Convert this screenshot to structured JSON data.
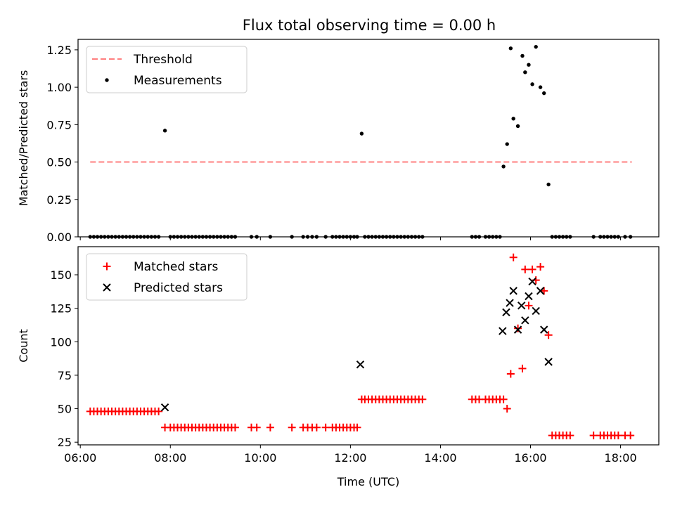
{
  "chart_data": [
    {
      "type": "scatter",
      "title": "Flux total observing time = 0.00 h",
      "xlabel": "",
      "ylabel": "Matched/Predicted stars",
      "xlim": [
        5.95,
        18.85
      ],
      "ylim": [
        0,
        1.32
      ],
      "yticks": [
        0.0,
        0.25,
        0.5,
        0.75,
        1.0,
        1.25
      ],
      "yticklabels": [
        "0.00",
        "0.25",
        "0.50",
        "0.75",
        "1.00",
        "1.25"
      ],
      "xticks": [
        6,
        8,
        10,
        12,
        14,
        16,
        18
      ],
      "xticklabels_visible": false,
      "legend_position": "upper-left",
      "threshold": {
        "name": "Threshold",
        "value": 0.5,
        "x_range": [
          6.22,
          18.25
        ],
        "color": "#ff7f7f"
      },
      "series": [
        {
          "name": "Measurements",
          "marker": "dot",
          "color": "#000000",
          "x": [
            6.22,
            6.3,
            6.38,
            6.46,
            6.54,
            6.62,
            6.7,
            6.78,
            6.86,
            6.94,
            7.02,
            7.1,
            7.18,
            7.26,
            7.34,
            7.42,
            7.5,
            7.58,
            7.66,
            7.74,
            7.88,
            8.0,
            8.08,
            8.16,
            8.24,
            8.32,
            8.4,
            8.48,
            8.56,
            8.64,
            8.72,
            8.8,
            8.88,
            8.96,
            9.04,
            9.12,
            9.2,
            9.28,
            9.36,
            9.44,
            9.8,
            9.92,
            10.22,
            10.7,
            10.95,
            11.05,
            11.15,
            11.25,
            11.45,
            11.6,
            11.68,
            11.76,
            11.84,
            11.92,
            12.0,
            12.08,
            12.15,
            12.25,
            12.32,
            12.4,
            12.48,
            12.56,
            12.64,
            12.72,
            12.8,
            12.88,
            12.96,
            13.04,
            13.12,
            13.2,
            13.28,
            13.36,
            13.44,
            13.52,
            13.6,
            14.7,
            14.78,
            14.86,
            15.0,
            15.08,
            15.16,
            15.24,
            15.32,
            15.4,
            15.48,
            15.56,
            15.62,
            15.72,
            15.82,
            15.88,
            15.96,
            16.04,
            16.12,
            16.22,
            16.3,
            16.4,
            16.48,
            16.56,
            16.64,
            16.72,
            16.8,
            16.88,
            17.4,
            17.55,
            17.63,
            17.71,
            17.79,
            17.87,
            17.95,
            18.1,
            18.22
          ],
          "y": [
            0,
            0,
            0,
            0,
            0,
            0,
            0,
            0,
            0,
            0,
            0,
            0,
            0,
            0,
            0,
            0,
            0,
            0,
            0,
            0,
            0.71,
            0,
            0,
            0,
            0,
            0,
            0,
            0,
            0,
            0,
            0,
            0,
            0,
            0,
            0,
            0,
            0,
            0,
            0,
            0,
            0,
            0,
            0,
            0,
            0,
            0,
            0,
            0,
            0,
            0,
            0,
            0,
            0,
            0,
            0,
            0,
            0,
            0.69,
            0,
            0,
            0,
            0,
            0,
            0,
            0,
            0,
            0,
            0,
            0,
            0,
            0,
            0,
            0,
            0,
            0,
            0,
            0,
            0,
            0,
            0,
            0,
            0,
            0,
            0.47,
            0.62,
            1.26,
            0.79,
            0.74,
            1.21,
            1.1,
            1.15,
            1.02,
            1.27,
            1.0,
            0.96,
            0.35,
            0,
            0,
            0,
            0,
            0,
            0,
            0,
            0,
            0,
            0,
            0,
            0,
            0,
            0,
            0
          ]
        }
      ]
    },
    {
      "type": "scatter",
      "title": "",
      "xlabel": "Time (UTC)",
      "ylabel": "Count",
      "xlim": [
        5.95,
        18.85
      ],
      "ylim": [
        23,
        171
      ],
      "yticks": [
        25,
        50,
        75,
        100,
        125,
        150
      ],
      "yticklabels": [
        "25",
        "50",
        "75",
        "100",
        "125",
        "150"
      ],
      "xticks": [
        6,
        8,
        10,
        12,
        14,
        16,
        18
      ],
      "xticklabels": [
        "06:00",
        "08:00",
        "10:00",
        "12:00",
        "14:00",
        "16:00",
        "18:00"
      ],
      "legend_position": "upper-left",
      "series": [
        {
          "name": "Matched stars",
          "marker": "plus",
          "color": "#ff0000",
          "x": [
            6.22,
            6.3,
            6.38,
            6.46,
            6.54,
            6.62,
            6.7,
            6.78,
            6.86,
            6.94,
            7.02,
            7.1,
            7.18,
            7.26,
            7.34,
            7.42,
            7.5,
            7.58,
            7.66,
            7.74,
            7.88,
            8.0,
            8.08,
            8.16,
            8.24,
            8.32,
            8.4,
            8.48,
            8.56,
            8.64,
            8.72,
            8.8,
            8.88,
            8.96,
            9.04,
            9.12,
            9.2,
            9.28,
            9.36,
            9.44,
            9.8,
            9.92,
            10.22,
            10.7,
            10.95,
            11.05,
            11.15,
            11.25,
            11.45,
            11.6,
            11.68,
            11.76,
            11.84,
            11.92,
            12.0,
            12.08,
            12.15,
            12.25,
            12.32,
            12.4,
            12.48,
            12.56,
            12.64,
            12.72,
            12.8,
            12.88,
            12.96,
            13.04,
            13.12,
            13.2,
            13.28,
            13.36,
            13.44,
            13.52,
            13.6,
            14.7,
            14.78,
            14.86,
            15.0,
            15.08,
            15.16,
            15.24,
            15.32,
            15.4,
            15.48,
            15.56,
            15.62,
            15.72,
            15.82,
            15.88,
            15.96,
            16.04,
            16.12,
            16.22,
            16.3,
            16.4,
            16.48,
            16.56,
            16.64,
            16.72,
            16.8,
            16.88,
            17.4,
            17.55,
            17.63,
            17.71,
            17.79,
            17.87,
            17.95,
            18.1,
            18.22
          ],
          "y": [
            48,
            48,
            48,
            48,
            48,
            48,
            48,
            48,
            48,
            48,
            48,
            48,
            48,
            48,
            48,
            48,
            48,
            48,
            48,
            48,
            36,
            36,
            36,
            36,
            36,
            36,
            36,
            36,
            36,
            36,
            36,
            36,
            36,
            36,
            36,
            36,
            36,
            36,
            36,
            36,
            36,
            36,
            36,
            36,
            36,
            36,
            36,
            36,
            36,
            36,
            36,
            36,
            36,
            36,
            36,
            36,
            36,
            57,
            57,
            57,
            57,
            57,
            57,
            57,
            57,
            57,
            57,
            57,
            57,
            57,
            57,
            57,
            57,
            57,
            57,
            57,
            57,
            57,
            57,
            57,
            57,
            57,
            57,
            57,
            50,
            76,
            163,
            110,
            80,
            154,
            127,
            154,
            146,
            156,
            138,
            105,
            30,
            30,
            30,
            30,
            30,
            30,
            30,
            30,
            30,
            30,
            30,
            30,
            30,
            30,
            30
          ]
        },
        {
          "name": "Predicted stars",
          "marker": "x",
          "color": "#000000",
          "x": [
            7.88,
            12.22,
            15.38,
            15.46,
            15.54,
            15.62,
            15.72,
            15.8,
            15.88,
            15.96,
            16.04,
            16.12,
            16.22,
            16.3,
            16.4
          ],
          "y": [
            51,
            83,
            108,
            122,
            129,
            138,
            109,
            127,
            116,
            134,
            145,
            123,
            138,
            109,
            85
          ]
        }
      ]
    }
  ]
}
